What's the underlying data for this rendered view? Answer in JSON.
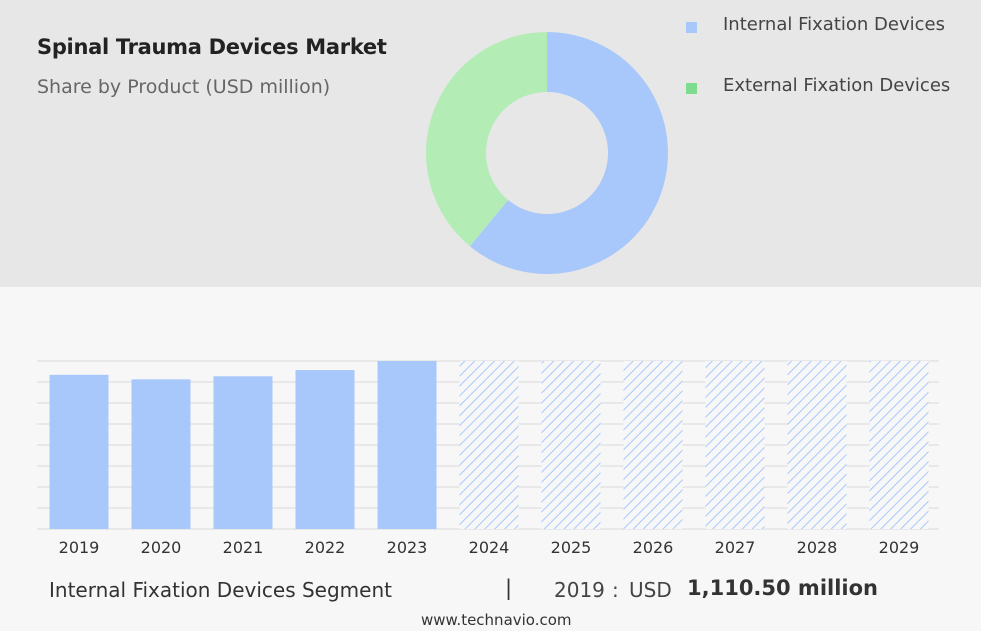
{
  "header": {
    "title": "Spinal Trauma Devices Market",
    "subtitle": "Share by Product (USD million)"
  },
  "legend": [
    {
      "label": "Internal Fixation Devices",
      "color": "#a8c8fb"
    },
    {
      "label": "External Fixation Devices",
      "color": "#7edc8f"
    }
  ],
  "chart_data": [
    {
      "type": "pie",
      "subtype": "donut",
      "title": "Share by Product (USD million)",
      "slices": [
        {
          "label": "Internal Fixation Devices",
          "share": 0.61,
          "color": "#a8c8fb"
        },
        {
          "label": "External Fixation Devices",
          "share": 0.39,
          "color": "#b4ecb6"
        }
      ]
    },
    {
      "type": "bar",
      "categories": [
        "2019",
        "2020",
        "2021",
        "2022",
        "2023",
        "2024",
        "2025",
        "2026",
        "2027",
        "2028",
        "2029"
      ],
      "values": [
        1110.5,
        1078,
        1100,
        1145,
        1210,
        1210,
        1210,
        1210,
        1210,
        1210,
        1210
      ],
      "forecast_from": "2024",
      "bar_color": "#a8c8fb",
      "forecast_style": "hatched",
      "ylim": [
        0,
        1210
      ],
      "grid": true
    }
  ],
  "footer": {
    "segment_label": "Internal Fixation Devices Segment",
    "separator": "|",
    "year": "2019",
    "colon": ":",
    "currency": "USD",
    "value": "1,110.50 million"
  },
  "source": "www.technavio.com"
}
